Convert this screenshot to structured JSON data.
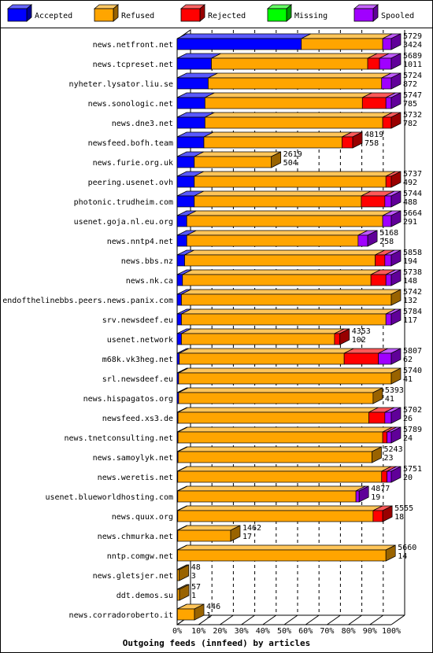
{
  "chart_data": {
    "type": "bar",
    "stacked": true,
    "orientation": "horizontal",
    "title": "Outgoing feeds (innfeed) by articles",
    "legend_position": "top",
    "colors": {
      "Accepted": "#0000ff",
      "Refused": "#ffa500",
      "Rejected": "#ff0000",
      "Missing": "#00ff00",
      "Spooled": "#a000ff"
    },
    "xlim": [
      0,
      100
    ],
    "x_ticks": [
      "0%",
      "10%",
      "20%",
      "30%",
      "40%",
      "50%",
      "60%",
      "70%",
      "80%",
      "90%",
      "100%"
    ],
    "series": [
      {
        "name": "Accepted"
      },
      {
        "name": "Refused"
      },
      {
        "name": "Rejected"
      },
      {
        "name": "Missing"
      },
      {
        "name": "Spooled"
      }
    ],
    "rows": [
      {
        "label": "news.netfront.net",
        "total": "5729",
        "accepted": "3424",
        "pct": [
          58.0,
          38.0,
          0,
          0,
          4.0
        ]
      },
      {
        "label": "news.tcpreset.net",
        "total": "5689",
        "accepted": "1011",
        "pct": [
          16.0,
          73.0,
          5.5,
          0,
          5.5
        ]
      },
      {
        "label": "nyheter.lysator.liu.se",
        "total": "5724",
        "accepted": "872",
        "pct": [
          14.5,
          81.0,
          0,
          0,
          4.5
        ]
      },
      {
        "label": "news.sonologic.net",
        "total": "5747",
        "accepted": "785",
        "pct": [
          13.0,
          73.5,
          11.0,
          0,
          2.5
        ]
      },
      {
        "label": "news.dne3.net",
        "total": "5732",
        "accepted": "782",
        "pct": [
          13.0,
          83.0,
          4.0,
          0,
          0
        ]
      },
      {
        "label": "newsfeed.bofh.team",
        "total": "4819",
        "accepted": "758",
        "pct": [
          12.5,
          64.5,
          5.0,
          0,
          0
        ]
      },
      {
        "label": "news.furie.org.uk",
        "total": "2619",
        "accepted": "504",
        "pct": [
          8.0,
          36.0,
          0,
          0,
          0
        ]
      },
      {
        "label": "peering.usenet.ovh",
        "total": "5737",
        "accepted": "492",
        "pct": [
          8.0,
          89.5,
          2.5,
          0,
          0
        ]
      },
      {
        "label": "photonic.trudheim.com",
        "total": "5744",
        "accepted": "488",
        "pct": [
          8.0,
          78.0,
          11.0,
          0,
          3.0
        ]
      },
      {
        "label": "usenet.goja.nl.eu.org",
        "total": "5664",
        "accepted": "291",
        "pct": [
          4.5,
          91.5,
          0,
          0,
          4.0
        ]
      },
      {
        "label": "news.nntp4.net",
        "total": "5168",
        "accepted": "258",
        "pct": [
          4.5,
          80.0,
          0,
          0,
          4.5
        ]
      },
      {
        "label": "news.bbs.nz",
        "total": "5858",
        "accepted": "194",
        "pct": [
          3.5,
          89.0,
          4.5,
          0,
          3.0
        ]
      },
      {
        "label": "news.nk.ca",
        "total": "5738",
        "accepted": "148",
        "pct": [
          2.5,
          88.0,
          7.0,
          0,
          2.5
        ]
      },
      {
        "label": "endofthelinebbs.peers.news.panix.com",
        "total": "5742",
        "accepted": "132",
        "pct": [
          2.0,
          98.0,
          0,
          0,
          0
        ]
      },
      {
        "label": "srv.newsdeef.eu",
        "total": "5784",
        "accepted": "117",
        "pct": [
          2.0,
          95.5,
          0,
          0,
          2.5
        ]
      },
      {
        "label": "usenet.network",
        "total": "4353",
        "accepted": "102",
        "pct": [
          2.0,
          71.5,
          2.5,
          0,
          0
        ]
      },
      {
        "label": "m68k.vk3heg.net",
        "total": "5807",
        "accepted": "62",
        "pct": [
          1.0,
          77.0,
          16.0,
          0,
          6.0
        ]
      },
      {
        "label": "srl.newsdeef.eu",
        "total": "5740",
        "accepted": "41",
        "pct": [
          0.7,
          99.3,
          0,
          0,
          0
        ]
      },
      {
        "label": "news.hispagatos.org",
        "total": "5393",
        "accepted": "41",
        "pct": [
          0.7,
          90.8,
          0,
          0,
          0
        ]
      },
      {
        "label": "newsfeed.xs3.de",
        "total": "5702",
        "accepted": "26",
        "pct": [
          0.4,
          89.1,
          7.5,
          0,
          3.0
        ]
      },
      {
        "label": "news.tnetconsulting.net",
        "total": "5789",
        "accepted": "24",
        "pct": [
          0.4,
          95.6,
          2.0,
          0,
          2.0
        ]
      },
      {
        "label": "news.samoylyk.net",
        "total": "5243",
        "accepted": "23",
        "pct": [
          0.4,
          90.6,
          0,
          0,
          0
        ]
      },
      {
        "label": "news.weretis.net",
        "total": "5751",
        "accepted": "20",
        "pct": [
          0.3,
          95.2,
          2.5,
          0,
          2.0
        ]
      },
      {
        "label": "usenet.blueworldhosting.com",
        "total": "4877",
        "accepted": "19",
        "pct": [
          0.3,
          83.2,
          0,
          0,
          1.5
        ]
      },
      {
        "label": "news.quux.org",
        "total": "5555",
        "accepted": "18",
        "pct": [
          0.3,
          91.2,
          4.5,
          0,
          0
        ]
      },
      {
        "label": "news.chmurka.net",
        "total": "1462",
        "accepted": "17",
        "pct": [
          0.3,
          24.7,
          0,
          0,
          0
        ]
      },
      {
        "label": "nntp.comgw.net",
        "total": "5660",
        "accepted": "14",
        "pct": [
          0.2,
          97.3,
          0,
          0,
          0
        ]
      },
      {
        "label": "news.gletsjer.net",
        "total": "48",
        "accepted": "3",
        "pct": [
          0.1,
          0.9,
          0,
          0,
          0
        ]
      },
      {
        "label": "ddt.demos.su",
        "total": "57",
        "accepted": "1",
        "pct": [
          0.1,
          1.0,
          0,
          0,
          0
        ]
      },
      {
        "label": "news.corradoroberto.it",
        "total": "446",
        "accepted": "1",
        "pct": [
          0.1,
          8.0,
          0,
          0,
          0
        ]
      }
    ]
  }
}
